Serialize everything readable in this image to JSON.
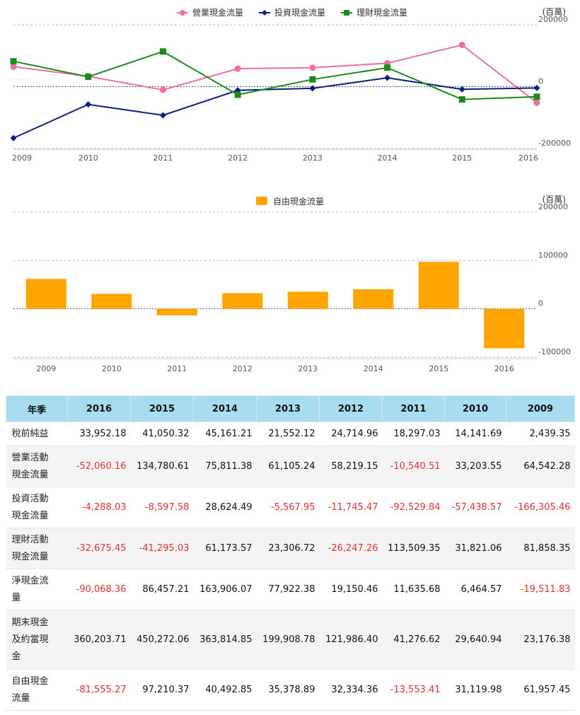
{
  "chart_data": [
    {
      "type": "line",
      "unit_label": "(百萬)",
      "categories": [
        "2009",
        "2010",
        "2011",
        "2012",
        "2013",
        "2014",
        "2015",
        "2016"
      ],
      "y_ticks": [
        "200000",
        "0",
        "-200000"
      ],
      "ylim": [
        -200000,
        200000
      ],
      "legend_placement": "top-center",
      "series": [
        {
          "name": "營業現金流量",
          "color": "#f06ea0",
          "marker": "circle",
          "values": [
            64542.28,
            33203.55,
            -10540.51,
            58219.15,
            61105.24,
            75811.38,
            134780.61,
            -52060.16
          ]
        },
        {
          "name": "投資現金流量",
          "color": "#0c1e80",
          "marker": "diamond",
          "values": [
            -166305.46,
            -57438.57,
            -92529.84,
            -11745.47,
            -5567.95,
            28624.49,
            -8597.58,
            -4288.03
          ]
        },
        {
          "name": "理財現金流量",
          "color": "#1a8a1a",
          "marker": "square",
          "values": [
            81858.35,
            31821.06,
            113509.35,
            -26247.26,
            23306.72,
            61173.57,
            -41295.03,
            -32675.45
          ]
        }
      ]
    },
    {
      "type": "bar",
      "unit_label": "(百萬)",
      "categories": [
        "2009",
        "2010",
        "2011",
        "2012",
        "2013",
        "2014",
        "2015",
        "2016"
      ],
      "y_ticks": [
        "200000",
        "100000",
        "0",
        "-100000"
      ],
      "ylim": [
        -100000,
        200000
      ],
      "legend_placement": "top-center",
      "series": [
        {
          "name": "自由現金流量",
          "color": "#ffa500",
          "values": [
            61957.45,
            31119.98,
            -13553.41,
            32334.36,
            35378.89,
            40492.85,
            97210.37,
            -81555.27
          ]
        }
      ]
    }
  ],
  "table": {
    "headers": [
      "年季",
      "2016",
      "2015",
      "2014",
      "2013",
      "2012",
      "2011",
      "2010",
      "2009"
    ],
    "rows": [
      {
        "label": "稅前純益",
        "cells": [
          "33,952.18",
          "41,050.32",
          "45,161.21",
          "21,552.12",
          "24,714.96",
          "18,297.03",
          "14,141.69",
          "2,439.35"
        ]
      },
      {
        "label": "營業活動\n現金流量",
        "cells": [
          "-52,060.16",
          "134,780.61",
          "75,811.38",
          "61,105.24",
          "58,219.15",
          "-10,540.51",
          "33,203.55",
          "64,542.28"
        ]
      },
      {
        "label": "投資活動\n現金流量",
        "cells": [
          "-4,288.03",
          "-8,597.58",
          "28,624.49",
          "-5,567.95",
          "-11,745.47",
          "-92,529.84",
          "-57,438.57",
          "-166,305.46"
        ]
      },
      {
        "label": "理財活動\n現金流量",
        "cells": [
          "-32,675.45",
          "-41,295.03",
          "61,173.57",
          "23,306.72",
          "-26,247.26",
          "113,509.35",
          "31,821.06",
          "81,858.35"
        ]
      },
      {
        "label": "淨現金流\n量",
        "cells": [
          "-90,068.36",
          "86,457.21",
          "163,906.07",
          "77,922.38",
          "19,150.46",
          "11,635.68",
          "6,464.57",
          "-19,511.83"
        ]
      },
      {
        "label": "期末現金\n及約當現\n金",
        "cells": [
          "360,203.71",
          "450,272.06",
          "363,814.85",
          "199,908.78",
          "121,986.40",
          "41,276.62",
          "29,640.94",
          "23,176.38"
        ]
      },
      {
        "label": "自由現金\n流量",
        "cells": [
          "-81,555.27",
          "97,210.37",
          "40,492.85",
          "35,378.89",
          "32,334.36",
          "-13,553.41",
          "31,119.98",
          "61,957.45"
        ]
      }
    ]
  }
}
